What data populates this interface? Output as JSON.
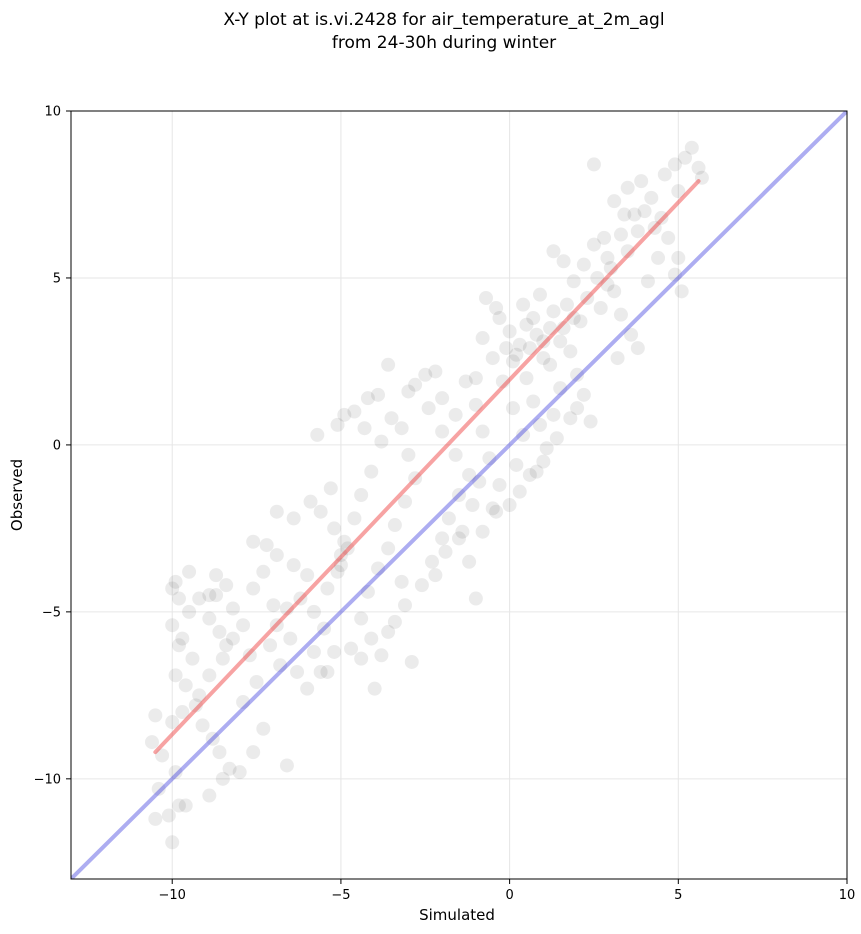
{
  "chart_data": {
    "type": "scatter",
    "title_lines": [
      "X-Y plot at is.vi.2428 for air_temperature_at_2m_agl",
      "from 24-30h during winter"
    ],
    "xlabel": "Simulated",
    "ylabel": "Observed",
    "xlim": [
      -13,
      10
    ],
    "ylim": [
      -13,
      10
    ],
    "xticks": [
      -10,
      -5,
      0,
      5,
      10
    ],
    "yticks": [
      -10,
      -5,
      0,
      5,
      10
    ],
    "xtick_labels": [
      "−10",
      "−5",
      "0",
      "5",
      "10"
    ],
    "ytick_labels": [
      "−10",
      "−5",
      "0",
      "5",
      "10"
    ],
    "grid": true,
    "marker_color": "#000000",
    "marker_alpha": 0.08,
    "reference_lines": [
      {
        "kind": "identity",
        "color": "#3333dd",
        "alpha": 0.4,
        "x": [
          -13,
          10
        ],
        "y": [
          -13,
          10
        ]
      },
      {
        "kind": "fit",
        "color": "#ee3333",
        "alpha": 0.45,
        "x": [
          -10.5,
          5.6
        ],
        "y": [
          -9.2,
          7.9
        ]
      }
    ],
    "series": [
      {
        "points": [
          [
            -10.5,
            -11.2
          ],
          [
            -10.1,
            -11.1
          ],
          [
            -10.0,
            -11.9
          ],
          [
            -9.8,
            -10.8
          ],
          [
            -9.6,
            -10.8
          ],
          [
            -10.4,
            -10.3
          ],
          [
            -9.9,
            -9.8
          ],
          [
            -10.3,
            -9.3
          ],
          [
            -10.6,
            -8.9
          ],
          [
            -10.0,
            -8.3
          ],
          [
            -10.5,
            -8.1
          ],
          [
            -9.7,
            -8.0
          ],
          [
            -9.3,
            -7.8
          ],
          [
            -9.6,
            -7.2
          ],
          [
            -9.9,
            -6.9
          ],
          [
            -9.4,
            -6.4
          ],
          [
            -9.8,
            -6.0
          ],
          [
            -9.7,
            -5.8
          ],
          [
            -10.0,
            -5.4
          ],
          [
            -9.5,
            -5.0
          ],
          [
            -9.8,
            -4.6
          ],
          [
            -10.0,
            -4.3
          ],
          [
            -9.9,
            -4.1
          ],
          [
            -9.5,
            -3.8
          ],
          [
            -9.2,
            -4.6
          ],
          [
            -8.9,
            -4.5
          ],
          [
            -8.7,
            -4.5
          ],
          [
            -8.9,
            -5.2
          ],
          [
            -8.6,
            -5.6
          ],
          [
            -8.4,
            -6.0
          ],
          [
            -8.2,
            -5.8
          ],
          [
            -8.5,
            -6.4
          ],
          [
            -8.9,
            -6.9
          ],
          [
            -9.2,
            -7.5
          ],
          [
            -9.1,
            -8.4
          ],
          [
            -8.8,
            -8.8
          ],
          [
            -8.6,
            -9.2
          ],
          [
            -8.3,
            -9.7
          ],
          [
            -8.0,
            -9.8
          ],
          [
            -8.5,
            -10.0
          ],
          [
            -8.9,
            -10.5
          ],
          [
            -7.6,
            -9.2
          ],
          [
            -7.3,
            -8.5
          ],
          [
            -7.9,
            -7.7
          ],
          [
            -7.5,
            -7.1
          ],
          [
            -7.7,
            -6.3
          ],
          [
            -7.9,
            -5.4
          ],
          [
            -8.2,
            -4.9
          ],
          [
            -7.6,
            -4.3
          ],
          [
            -7.3,
            -3.8
          ],
          [
            -6.9,
            -3.3
          ],
          [
            -6.4,
            -3.6
          ],
          [
            -6.0,
            -3.9
          ],
          [
            -6.2,
            -4.6
          ],
          [
            -6.6,
            -4.9
          ],
          [
            -6.9,
            -5.4
          ],
          [
            -7.1,
            -6.0
          ],
          [
            -6.8,
            -6.6
          ],
          [
            -6.3,
            -6.8
          ],
          [
            -6.6,
            -9.6
          ],
          [
            -6.0,
            -7.3
          ],
          [
            -5.6,
            -6.8
          ],
          [
            -5.2,
            -6.2
          ],
          [
            -5.5,
            -5.5
          ],
          [
            -5.8,
            -5.0
          ],
          [
            -5.4,
            -4.3
          ],
          [
            -5.1,
            -3.8
          ],
          [
            -5.0,
            -3.3
          ],
          [
            -4.9,
            -2.9
          ],
          [
            -5.2,
            -2.5
          ],
          [
            -5.6,
            -2.0
          ],
          [
            -5.9,
            -1.7
          ],
          [
            -5.3,
            -1.3
          ],
          [
            -5.0,
            -3.6
          ],
          [
            -4.8,
            -3.1
          ],
          [
            -4.6,
            -2.2
          ],
          [
            -4.4,
            -1.5
          ],
          [
            -4.1,
            -0.8
          ],
          [
            -3.8,
            0.1
          ],
          [
            -4.3,
            0.5
          ],
          [
            -4.6,
            1.0
          ],
          [
            -4.2,
            1.4
          ],
          [
            -3.9,
            1.5
          ],
          [
            -3.5,
            0.8
          ],
          [
            -3.2,
            0.5
          ],
          [
            -3.0,
            -0.3
          ],
          [
            -2.8,
            -1.0
          ],
          [
            -3.1,
            -1.7
          ],
          [
            -3.4,
            -2.4
          ],
          [
            -3.6,
            -3.1
          ],
          [
            -3.9,
            -3.7
          ],
          [
            -4.2,
            -4.4
          ],
          [
            -4.4,
            -5.2
          ],
          [
            -4.1,
            -5.8
          ],
          [
            -3.8,
            -6.3
          ],
          [
            -4.0,
            -7.3
          ],
          [
            -3.4,
            -5.3
          ],
          [
            -3.1,
            -4.8
          ],
          [
            -2.9,
            -6.5
          ],
          [
            -2.6,
            -4.2
          ],
          [
            -2.3,
            -3.5
          ],
          [
            -2.0,
            -2.8
          ],
          [
            -1.8,
            -2.2
          ],
          [
            -1.5,
            -1.5
          ],
          [
            -1.2,
            -0.9
          ],
          [
            -1.6,
            -0.3
          ],
          [
            -2.0,
            0.4
          ],
          [
            -2.4,
            1.1
          ],
          [
            -2.8,
            1.8
          ],
          [
            -2.5,
            2.1
          ],
          [
            -2.0,
            1.4
          ],
          [
            -1.6,
            0.9
          ],
          [
            -1.3,
            1.9
          ],
          [
            -1.0,
            1.2
          ],
          [
            -0.8,
            0.4
          ],
          [
            -0.6,
            -0.4
          ],
          [
            -0.9,
            -1.1
          ],
          [
            -1.1,
            -1.8
          ],
          [
            -1.4,
            -2.6
          ],
          [
            -1.2,
            -3.5
          ],
          [
            -1.0,
            -4.6
          ],
          [
            -0.5,
            -1.9
          ],
          [
            -0.3,
            -1.2
          ],
          [
            0.0,
            -1.8
          ],
          [
            0.2,
            -0.6
          ],
          [
            0.4,
            0.3
          ],
          [
            0.1,
            1.1
          ],
          [
            -0.2,
            1.9
          ],
          [
            -0.5,
            2.6
          ],
          [
            -0.8,
            3.2
          ],
          [
            -0.3,
            3.8
          ],
          [
            0.0,
            3.4
          ],
          [
            0.2,
            2.7
          ],
          [
            0.5,
            2.0
          ],
          [
            0.7,
            1.3
          ],
          [
            0.9,
            0.6
          ],
          [
            1.1,
            -0.1
          ],
          [
            0.8,
            -0.8
          ],
          [
            1.3,
            0.9
          ],
          [
            1.5,
            1.7
          ],
          [
            1.2,
            2.4
          ],
          [
            1.0,
            3.1
          ],
          [
            0.7,
            3.8
          ],
          [
            0.4,
            4.2
          ],
          [
            0.9,
            4.5
          ],
          [
            1.3,
            4.0
          ],
          [
            1.6,
            3.5
          ],
          [
            1.8,
            2.8
          ],
          [
            2.0,
            2.1
          ],
          [
            2.2,
            1.5
          ],
          [
            2.4,
            0.7
          ],
          [
            2.1,
            3.7
          ],
          [
            2.3,
            4.4
          ],
          [
            2.6,
            5.0
          ],
          [
            2.9,
            5.6
          ],
          [
            2.5,
            6.0
          ],
          [
            2.2,
            5.4
          ],
          [
            1.9,
            4.9
          ],
          [
            1.6,
            5.5
          ],
          [
            1.3,
            5.8
          ],
          [
            3.1,
            4.6
          ],
          [
            3.3,
            3.9
          ],
          [
            3.6,
            3.3
          ],
          [
            3.8,
            2.9
          ],
          [
            3.2,
            2.6
          ],
          [
            3.5,
            5.8
          ],
          [
            3.8,
            6.4
          ],
          [
            3.4,
            6.9
          ],
          [
            3.1,
            7.3
          ],
          [
            3.5,
            7.7
          ],
          [
            3.9,
            7.9
          ],
          [
            4.2,
            7.4
          ],
          [
            4.5,
            6.8
          ],
          [
            4.7,
            6.2
          ],
          [
            4.4,
            5.6
          ],
          [
            4.9,
            5.1
          ],
          [
            5.1,
            4.6
          ],
          [
            4.1,
            4.9
          ],
          [
            4.6,
            8.1
          ],
          [
            4.9,
            8.4
          ],
          [
            5.2,
            8.6
          ],
          [
            5.4,
            8.9
          ],
          [
            5.6,
            8.3
          ],
          [
            5.0,
            7.6
          ],
          [
            5.7,
            8.0
          ],
          [
            5.0,
            5.6
          ],
          [
            2.5,
            8.4
          ],
          [
            -6.4,
            -2.2
          ],
          [
            -6.9,
            -2.0
          ],
          [
            -7.2,
            -3.0
          ],
          [
            -7.6,
            -2.9
          ],
          [
            -5.7,
            0.3
          ],
          [
            -5.1,
            0.6
          ],
          [
            -4.9,
            0.9
          ],
          [
            -3.6,
            2.4
          ],
          [
            -3.0,
            1.6
          ],
          [
            -2.2,
            2.2
          ],
          [
            -1.0,
            2.0
          ],
          [
            -0.7,
            4.4
          ],
          [
            -0.4,
            4.1
          ],
          [
            -8.7,
            -3.9
          ],
          [
            -8.4,
            -4.2
          ],
          [
            -7.0,
            -4.8
          ],
          [
            -6.5,
            -5.8
          ],
          [
            -5.8,
            -6.2
          ],
          [
            -5.4,
            -6.8
          ],
          [
            -4.7,
            -6.1
          ],
          [
            -4.4,
            -6.4
          ],
          [
            -3.6,
            -5.6
          ],
          [
            -3.2,
            -4.1
          ],
          [
            -2.2,
            -3.9
          ],
          [
            -1.9,
            -3.2
          ],
          [
            -1.5,
            -2.8
          ],
          [
            -0.8,
            -2.6
          ],
          [
            -0.4,
            -2.0
          ],
          [
            0.3,
            -1.4
          ],
          [
            0.6,
            -0.9
          ],
          [
            1.0,
            -0.5
          ],
          [
            1.4,
            0.2
          ],
          [
            1.8,
            0.8
          ],
          [
            2.0,
            1.1
          ],
          [
            0.6,
            2.9
          ],
          [
            0.8,
            3.3
          ],
          [
            1.0,
            2.6
          ],
          [
            1.2,
            3.5
          ],
          [
            0.5,
            3.6
          ],
          [
            0.3,
            3.0
          ],
          [
            0.1,
            2.5
          ],
          [
            -0.1,
            2.9
          ],
          [
            1.5,
            3.1
          ],
          [
            1.7,
            4.2
          ],
          [
            1.9,
            3.8
          ],
          [
            2.7,
            4.1
          ],
          [
            2.9,
            4.8
          ],
          [
            3.0,
            5.3
          ],
          [
            2.8,
            6.2
          ],
          [
            3.3,
            6.3
          ],
          [
            3.7,
            6.9
          ],
          [
            4.0,
            7.0
          ],
          [
            4.3,
            6.5
          ]
        ]
      }
    ]
  }
}
